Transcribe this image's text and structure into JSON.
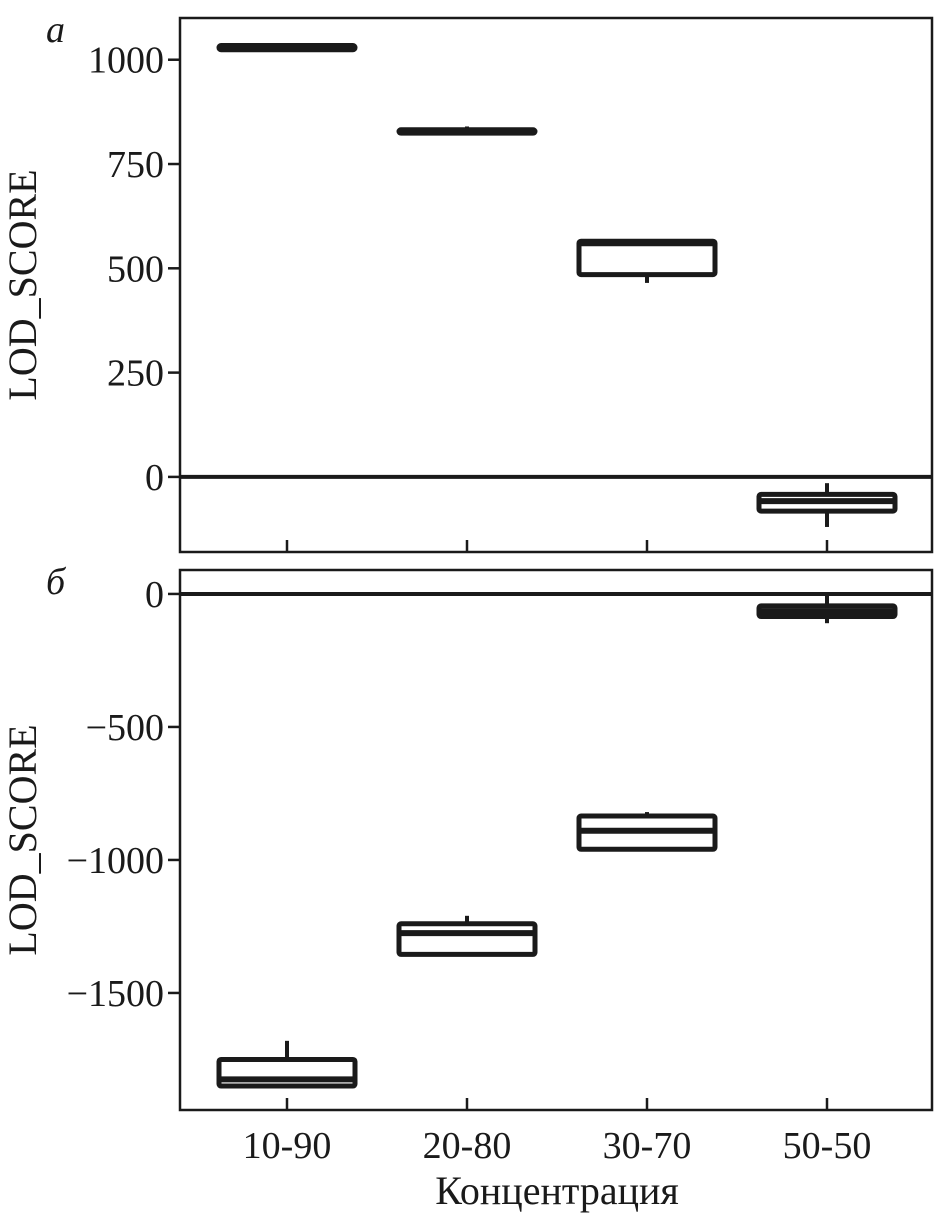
{
  "chart_data": [
    {
      "type": "box",
      "panel_label": "а",
      "ylabel": "LOD_SCORE",
      "xlabel": "",
      "categories": [
        "10-90",
        "20-80",
        "30-70",
        "50-50"
      ],
      "yticks": [
        0,
        250,
        500,
        750,
        1000
      ],
      "ylim": [
        -180,
        1100
      ],
      "reference_line": 0,
      "boxes": [
        {
          "category": "10-90",
          "whisker_low": 1020,
          "q1": 1024,
          "median": 1030,
          "q3": 1034,
          "whisker_high": 1036
        },
        {
          "category": "20-80",
          "whisker_low": 824,
          "q1": 824,
          "median": 828,
          "q3": 832,
          "whisker_high": 840
        },
        {
          "category": "30-70",
          "whisker_low": 465,
          "q1": 485,
          "median": 560,
          "q3": 565,
          "whisker_high": 565
        },
        {
          "category": "50-50",
          "whisker_low": -120,
          "q1": -82,
          "median": -58,
          "q3": -42,
          "whisker_high": -15
        }
      ]
    },
    {
      "type": "box",
      "panel_label": "б",
      "ylabel": "LOD_SCORE",
      "xlabel": "Концентрация",
      "categories": [
        "10-90",
        "20-80",
        "30-70",
        "50-50"
      ],
      "yticks": [
        0,
        -500,
        -1000,
        -1500
      ],
      "ylim": [
        -1940,
        90
      ],
      "reference_line": 0,
      "boxes": [
        {
          "category": "10-90",
          "whisker_low": -1850,
          "q1": -1850,
          "median": -1825,
          "q3": -1750,
          "whisker_high": -1680
        },
        {
          "category": "20-80",
          "whisker_low": -1355,
          "q1": -1355,
          "median": -1275,
          "q3": -1240,
          "whisker_high": -1210
        },
        {
          "category": "30-70",
          "whisker_low": -960,
          "q1": -960,
          "median": -890,
          "q3": -835,
          "whisker_high": -820
        },
        {
          "category": "50-50",
          "whisker_low": -110,
          "q1": -85,
          "median": -65,
          "q3": -45,
          "whisker_high": 0
        }
      ]
    }
  ]
}
